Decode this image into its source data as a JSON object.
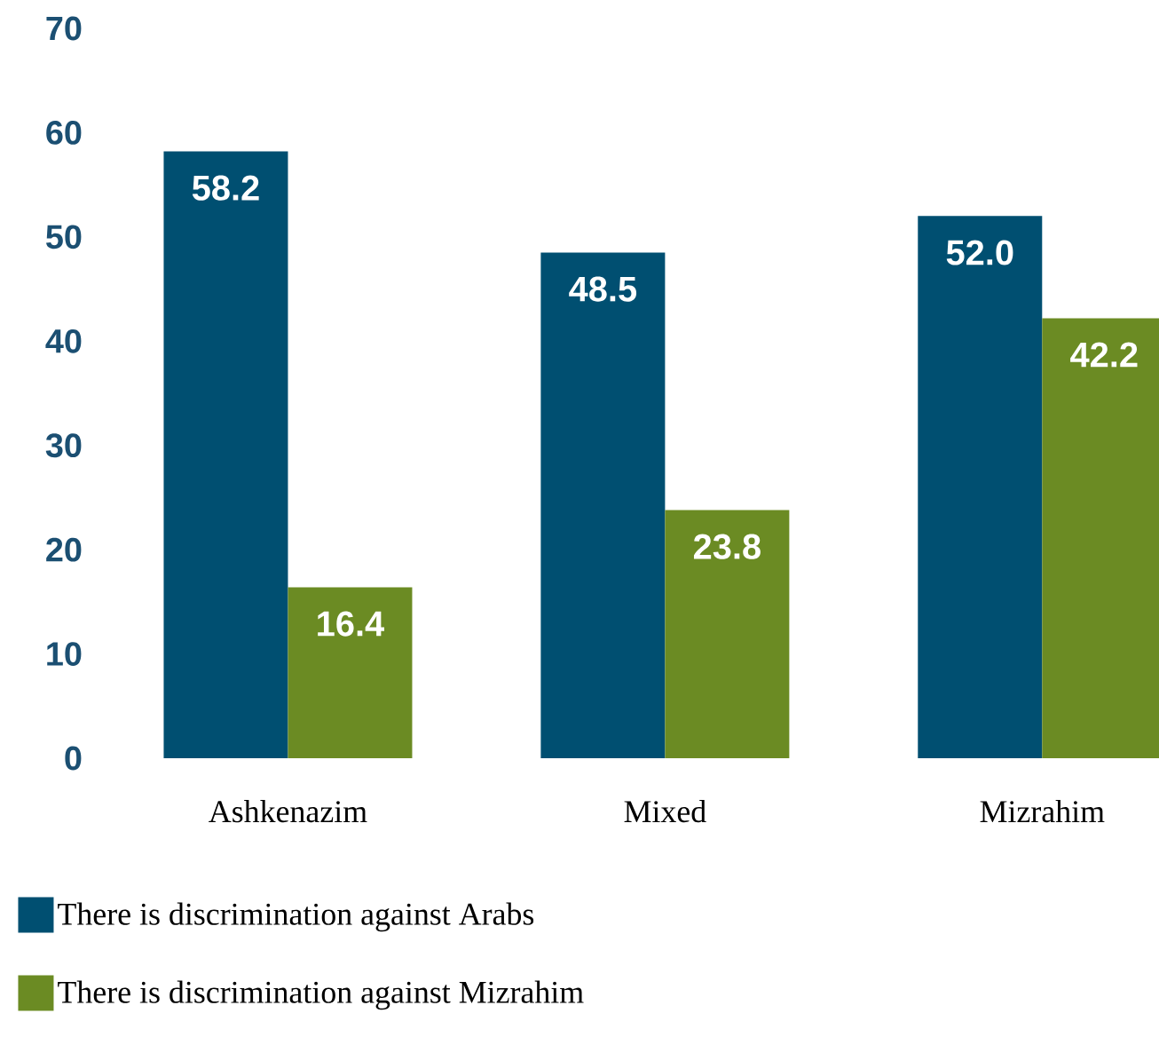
{
  "chart_data": {
    "type": "bar",
    "categories": [
      "Ashkenazim",
      "Mixed",
      "Mizrahim"
    ],
    "series": [
      {
        "name": "There is discrimination against Arabs",
        "color": "#004f71",
        "values": [
          58.2,
          48.5,
          52.0
        ],
        "value_labels": [
          "58.2",
          "48.5",
          "52.0"
        ]
      },
      {
        "name": "There is discrimination against Mizrahim",
        "color": "#6b8b23",
        "values": [
          16.4,
          23.8,
          42.2
        ],
        "value_labels": [
          "16.4",
          "23.8",
          "42.2"
        ]
      }
    ],
    "ylim": [
      0,
      70
    ],
    "yticks": [
      0,
      10,
      20,
      30,
      40,
      50,
      60,
      70
    ],
    "legend": "bottom"
  }
}
